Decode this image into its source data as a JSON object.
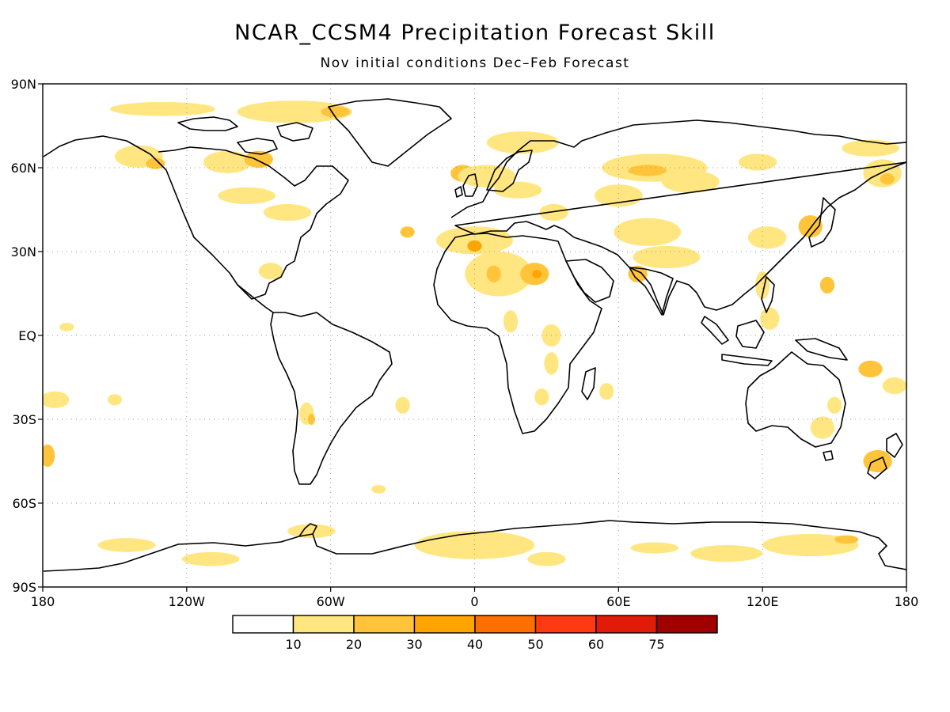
{
  "title": "NCAR_CCSM4 Precipitation Forecast Skill",
  "subtitle": "Nov initial conditions  Dec–Feb Forecast",
  "map": {
    "lat_labels": [
      "90N",
      "60N",
      "30N",
      "EQ",
      "30S",
      "60S",
      "90S"
    ],
    "lon_labels": [
      "180",
      "120W",
      "60W",
      "0",
      "60E",
      "120E",
      "180"
    ],
    "lat_ticks": [
      90,
      60,
      30,
      0,
      -30,
      -60,
      -90
    ],
    "lon_ticks": [
      -180,
      -120,
      -60,
      0,
      60,
      120,
      180
    ],
    "grid": "dotted",
    "projection": "equirectangular"
  },
  "colorbar": {
    "labels": [
      "10",
      "20",
      "30",
      "40",
      "50",
      "60",
      "75"
    ],
    "colors": [
      "#ffffff",
      "#ffe680",
      "#ffc43a",
      "#ffa400",
      "#ff6e00",
      "#ff3a12",
      "#e01c08",
      "#a00000"
    ]
  },
  "chart_data": {
    "type": "heatmap",
    "title": "NCAR_CCSM4 Precipitation Forecast Skill",
    "subtitle": "Nov initial conditions  Dec–Feb Forecast",
    "xlim": [
      -180,
      180
    ],
    "ylim": [
      -90,
      90
    ],
    "levels": [
      10,
      20,
      30,
      40,
      50,
      60,
      75
    ],
    "patches": [
      {
        "lon": -130,
        "lat": 81,
        "rlon": 22,
        "rlat": 2.5,
        "level": 1
      },
      {
        "lon": -75,
        "lat": 80,
        "rlon": 24,
        "rlat": 4,
        "level": 1
      },
      {
        "lon": -58,
        "lat": 80,
        "rlon": 6,
        "rlat": 2,
        "level": 2
      },
      {
        "lon": -140,
        "lat": 64,
        "rlon": 10,
        "rlat": 4,
        "level": 1
      },
      {
        "lon": -133,
        "lat": 61.5,
        "rlon": 4,
        "rlat": 2,
        "level": 2
      },
      {
        "lon": -103,
        "lat": 62,
        "rlon": 10,
        "rlat": 4,
        "level": 1
      },
      {
        "lon": -90,
        "lat": 63,
        "rlon": 6,
        "rlat": 3,
        "level": 2
      },
      {
        "lon": -95,
        "lat": 50,
        "rlon": 12,
        "rlat": 3,
        "level": 1
      },
      {
        "lon": -78,
        "lat": 44,
        "rlon": 10,
        "rlat": 3,
        "level": 1
      },
      {
        "lon": -85,
        "lat": 23,
        "rlon": 5,
        "rlat": 3,
        "level": 1
      },
      {
        "lon": -170,
        "lat": 3,
        "rlon": 3,
        "rlat": 1.5,
        "level": 1
      },
      {
        "lon": -175,
        "lat": -23,
        "rlon": 6,
        "rlat": 3,
        "level": 1
      },
      {
        "lon": -178,
        "lat": -43,
        "rlon": 3,
        "rlat": 4,
        "level": 2
      },
      {
        "lon": -150,
        "lat": -23,
        "rlon": 3,
        "rlat": 2,
        "level": 1
      },
      {
        "lon": -70,
        "lat": -28,
        "rlon": 3,
        "rlat": 4,
        "level": 1
      },
      {
        "lon": -68,
        "lat": -30,
        "rlon": 1.5,
        "rlat": 2,
        "level": 2
      },
      {
        "lon": -30,
        "lat": -25,
        "rlon": 3,
        "rlat": 3,
        "level": 1
      },
      {
        "lon": -40,
        "lat": -55,
        "rlon": 3,
        "rlat": 1.5,
        "level": 1
      },
      {
        "lon": -5,
        "lat": 58,
        "rlon": 5,
        "rlat": 3,
        "level": 2
      },
      {
        "lon": 5,
        "lat": 57,
        "rlon": 12,
        "rlat": 4,
        "level": 1
      },
      {
        "lon": 18,
        "lat": 52,
        "rlon": 10,
        "rlat": 3,
        "level": 1
      },
      {
        "lon": 20,
        "lat": 69,
        "rlon": 15,
        "rlat": 4,
        "level": 1
      },
      {
        "lon": 0,
        "lat": 34,
        "rlon": 16,
        "rlat": 5,
        "level": 1
      },
      {
        "lon": 0,
        "lat": 32,
        "rlon": 3,
        "rlat": 2,
        "level": 3
      },
      {
        "lon": 10,
        "lat": 22,
        "rlon": 14,
        "rlat": 8,
        "level": 1
      },
      {
        "lon": 8,
        "lat": 22,
        "rlon": 3,
        "rlat": 3,
        "level": 2
      },
      {
        "lon": 25,
        "lat": 22,
        "rlon": 6,
        "rlat": 4,
        "level": 2
      },
      {
        "lon": 26,
        "lat": 22,
        "rlon": 2,
        "rlat": 1.5,
        "level": 3
      },
      {
        "lon": -28,
        "lat": 37,
        "rlon": 3,
        "rlat": 2,
        "level": 2
      },
      {
        "lon": 33,
        "lat": 44,
        "rlon": 6,
        "rlat": 3,
        "level": 1
      },
      {
        "lon": 15,
        "lat": 5,
        "rlon": 3,
        "rlat": 4,
        "level": 1
      },
      {
        "lon": 32,
        "lat": 0,
        "rlon": 4,
        "rlat": 4,
        "level": 1
      },
      {
        "lon": 32,
        "lat": -10,
        "rlon": 3,
        "rlat": 4,
        "level": 1
      },
      {
        "lon": 28,
        "lat": -22,
        "rlon": 3,
        "rlat": 3,
        "level": 1
      },
      {
        "lon": 55,
        "lat": -20,
        "rlon": 3,
        "rlat": 3,
        "level": 1
      },
      {
        "lon": 75,
        "lat": 60,
        "rlon": 22,
        "rlat": 5,
        "level": 1
      },
      {
        "lon": 72,
        "lat": 59,
        "rlon": 8,
        "rlat": 2,
        "level": 2
      },
      {
        "lon": 90,
        "lat": 55,
        "rlon": 12,
        "rlat": 4,
        "level": 1
      },
      {
        "lon": 60,
        "lat": 50,
        "rlon": 10,
        "rlat": 4,
        "level": 1
      },
      {
        "lon": 72,
        "lat": 37,
        "rlon": 14,
        "rlat": 5,
        "level": 1
      },
      {
        "lon": 80,
        "lat": 28,
        "rlon": 14,
        "rlat": 4,
        "level": 1
      },
      {
        "lon": 68,
        "lat": 22,
        "rlon": 4,
        "rlat": 3,
        "level": 2
      },
      {
        "lon": 122,
        "lat": 35,
        "rlon": 8,
        "rlat": 4,
        "level": 1
      },
      {
        "lon": 140,
        "lat": 39,
        "rlon": 5,
        "rlat": 4,
        "level": 2
      },
      {
        "lon": 118,
        "lat": 62,
        "rlon": 8,
        "rlat": 3,
        "level": 1
      },
      {
        "lon": 170,
        "lat": 58,
        "rlon": 8,
        "rlat": 5,
        "level": 1
      },
      {
        "lon": 172,
        "lat": 56,
        "rlon": 3,
        "rlat": 2,
        "level": 2
      },
      {
        "lon": 165,
        "lat": 67,
        "rlon": 12,
        "rlat": 3,
        "level": 1
      },
      {
        "lon": 120,
        "lat": 18,
        "rlon": 3,
        "rlat": 5,
        "level": 1
      },
      {
        "lon": 147,
        "lat": 18,
        "rlon": 3,
        "rlat": 3,
        "level": 2
      },
      {
        "lon": 123,
        "lat": 6,
        "rlon": 4,
        "rlat": 4,
        "level": 1
      },
      {
        "lon": 165,
        "lat": -12,
        "rlon": 5,
        "rlat": 3,
        "level": 2
      },
      {
        "lon": 175,
        "lat": -18,
        "rlon": 5,
        "rlat": 3,
        "level": 1
      },
      {
        "lon": 168,
        "lat": -45,
        "rlon": 6,
        "rlat": 4,
        "level": 2
      },
      {
        "lon": 145,
        "lat": -33,
        "rlon": 5,
        "rlat": 4,
        "level": 1
      },
      {
        "lon": 150,
        "lat": -25,
        "rlon": 3,
        "rlat": 3,
        "level": 1
      },
      {
        "lon": -145,
        "lat": -75,
        "rlon": 12,
        "rlat": 2.5,
        "level": 1
      },
      {
        "lon": -110,
        "lat": -80,
        "rlon": 12,
        "rlat": 2.5,
        "level": 1
      },
      {
        "lon": 0,
        "lat": -75,
        "rlon": 25,
        "rlat": 5,
        "level": 1
      },
      {
        "lon": 30,
        "lat": -80,
        "rlon": 8,
        "rlat": 2.5,
        "level": 1
      },
      {
        "lon": 75,
        "lat": -76,
        "rlon": 10,
        "rlat": 2,
        "level": 1
      },
      {
        "lon": 105,
        "lat": -78,
        "rlon": 15,
        "rlat": 3,
        "level": 1
      },
      {
        "lon": 140,
        "lat": -75,
        "rlon": 20,
        "rlat": 4,
        "level": 1
      },
      {
        "lon": 155,
        "lat": -73,
        "rlon": 5,
        "rlat": 1.5,
        "level": 2
      },
      {
        "lon": -68,
        "lat": -70,
        "rlon": 10,
        "rlat": 2.5,
        "level": 1
      }
    ]
  }
}
